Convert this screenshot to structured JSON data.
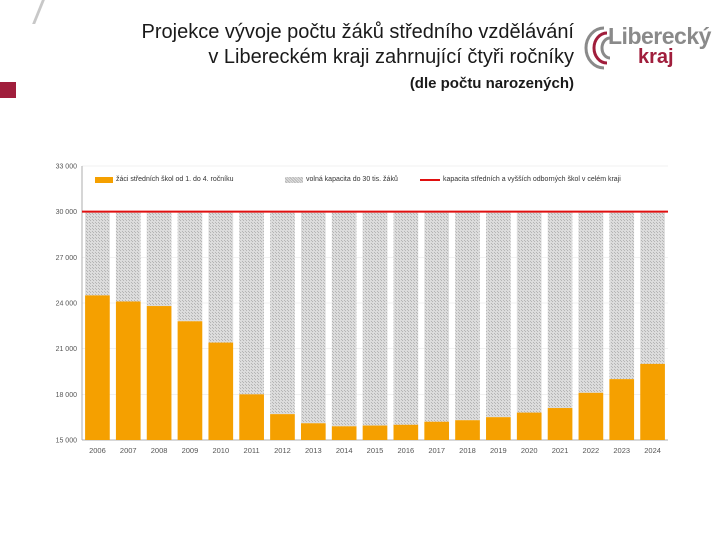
{
  "title_lines": [
    "Projekce vývoje počtu žáků středního vzdělávání",
    "v Libereckém kraji zahrnující čtyři ročníky"
  ],
  "subtitle": "(dle počtu narozených)",
  "logo": {
    "line1": "Liberecký",
    "line2": "kraj"
  },
  "colors": {
    "bar": "#f5a000",
    "capacity": "#e01010",
    "brand": "#a01e3c"
  },
  "chart_data": {
    "type": "bar",
    "categories": [
      "2006",
      "2007",
      "2008",
      "2009",
      "2010",
      "2011",
      "2012",
      "2013",
      "2014",
      "2015",
      "2016",
      "2017",
      "2018",
      "2019",
      "2020",
      "2021",
      "2022",
      "2023",
      "2024"
    ],
    "series": [
      {
        "name": "žáci středních škol od 1. do 4. ročníku",
        "values": [
          24500,
          24100,
          23800,
          22800,
          21400,
          18000,
          16700,
          16100,
          15900,
          15950,
          16000,
          16200,
          16300,
          16500,
          16800,
          17100,
          18100,
          19000,
          20000
        ]
      },
      {
        "name": "volná kapacita do 30 tis. žáků"
      },
      {
        "name": "kapacita středních a vyšších odborných škol v celém kraji",
        "value": 30000
      }
    ],
    "ytick_labels": [
      "15 000",
      "18 000",
      "21 000",
      "24 000",
      "27 000",
      "30 000",
      "33 000"
    ],
    "ylim": [
      15000,
      33000
    ]
  }
}
